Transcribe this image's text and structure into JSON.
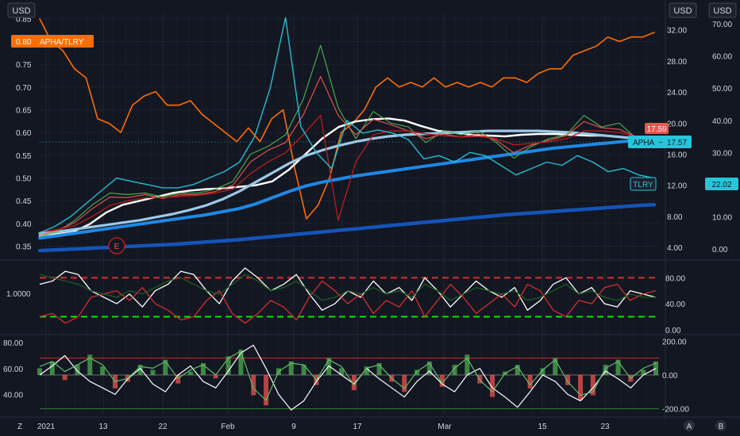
{
  "currency_labels": {
    "left": "USD",
    "mid": "USD",
    "right": "USD"
  },
  "symbol_tags": {
    "ratio": {
      "value": "0.80",
      "name": "APHA/TLRY",
      "color": "#ff6d00"
    },
    "apha_price": {
      "value": "17.59",
      "color": "#ef5350"
    },
    "apha_name": {
      "name": "APHA",
      "dash": "−",
      "value": "17.57",
      "color": "#26c6da"
    },
    "tlry_name": {
      "name": "TLRY",
      "color": "#26c6da"
    },
    "tlry_price": {
      "value": "22.02",
      "color": "#26c6da"
    },
    "earnings_marker": "E"
  },
  "scale_buttons": {
    "left": "Z",
    "a": "A",
    "b": "B"
  },
  "chart_data": [
    {
      "type": "line",
      "panel": "main",
      "x_ticks": [
        "2021",
        "13",
        "22",
        "Feb",
        "9",
        "17",
        "Mar",
        "15",
        "23"
      ],
      "left_axis": {
        "ticks": [
          "0.35",
          "0.40",
          "0.45",
          "0.50",
          "0.55",
          "0.60",
          "0.65",
          "0.70",
          "0.75",
          "0.80",
          "0.85"
        ],
        "range": [
          0.33,
          0.86
        ]
      },
      "mid_axis": {
        "ticks": [
          "4.00",
          "8.00",
          "12.00",
          "16.00",
          "20.00",
          "24.00",
          "28.00",
          "32.00"
        ],
        "range": [
          3,
          34
        ]
      },
      "right_axis": {
        "ticks": [
          "0.00",
          "10.00",
          "20.00",
          "30.00",
          "40.00",
          "50.00",
          "60.00",
          "70.00"
        ],
        "range": [
          -2,
          73
        ]
      },
      "series": [
        {
          "axis": "left",
          "color": "#ff6d00",
          "values": [
            0.85,
            0.8,
            0.78,
            0.74,
            0.72,
            0.63,
            0.62,
            0.6,
            0.66,
            0.68,
            0.69,
            0.66,
            0.66,
            0.67,
            0.64,
            0.62,
            0.6,
            0.58,
            0.61,
            0.58,
            0.63,
            0.65,
            0.52,
            0.41,
            0.44,
            0.5,
            0.6,
            0.62,
            0.65,
            0.7,
            0.72,
            0.7,
            0.71,
            0.7,
            0.72,
            0.7,
            0.71,
            0.7,
            0.71,
            0.7,
            0.72,
            0.72,
            0.71,
            0.73,
            0.74,
            0.74,
            0.77,
            0.78,
            0.79,
            0.81,
            0.8,
            0.81,
            0.81,
            0.82
          ]
        },
        {
          "axis": "mid",
          "color": "#ffffff",
          "values": [
            5.5,
            5.7,
            6.0,
            7.0,
            8.5,
            9.5,
            10.0,
            10.5,
            11.0,
            11.3,
            11.5,
            11.6,
            11.8,
            12.0,
            12.5,
            14.0,
            16.0,
            18.0,
            19.5,
            20.2,
            20.5,
            20.6,
            20.3,
            19.6,
            19.0,
            18.8,
            18.5,
            18.4,
            18.3,
            18.5,
            18.6,
            18.6,
            18.5,
            18.4,
            18.4,
            18.2,
            18.0,
            17.8
          ]
        },
        {
          "axis": "mid",
          "color": "#9ec9e8",
          "values": [
            5.8,
            6.0,
            6.3,
            6.6,
            6.9,
            7.2,
            7.5,
            7.9,
            8.3,
            8.8,
            9.4,
            10.2,
            11.2,
            12.4,
            13.6,
            14.8,
            15.8,
            16.5,
            17.1,
            17.6,
            18.0,
            18.3,
            18.5,
            18.6,
            18.7,
            18.8,
            18.9,
            19.0,
            19.0,
            19.0,
            19.0,
            18.9,
            18.8,
            18.6,
            18.4,
            18.2,
            18.0,
            17.7
          ]
        },
        {
          "axis": "mid",
          "color": "#1e88e5",
          "values": [
            5.2,
            5.5,
            5.8,
            6.1,
            6.4,
            6.7,
            7.0,
            7.3,
            7.6,
            7.9,
            8.2,
            8.6,
            9.0,
            9.6,
            10.4,
            11.2,
            11.9,
            12.4,
            12.8,
            13.2,
            13.5,
            13.8,
            14.1,
            14.4,
            14.7,
            15.0,
            15.3,
            15.6,
            15.9,
            16.2,
            16.5,
            16.8,
            17.0,
            17.2,
            17.4,
            17.6,
            17.8,
            18.0
          ]
        },
        {
          "axis": "mid",
          "color": "#1554b8",
          "values": [
            3.6,
            3.7,
            3.8,
            3.9,
            4.0,
            4.1,
            4.2,
            4.3,
            4.4,
            4.55,
            4.7,
            4.85,
            5.0,
            5.2,
            5.4,
            5.6,
            5.8,
            6.0,
            6.2,
            6.4,
            6.6,
            6.8,
            7.0,
            7.2,
            7.4,
            7.6,
            7.8,
            8.0,
            8.2,
            8.35,
            8.5,
            8.65,
            8.8,
            8.95,
            9.1,
            9.25,
            9.4,
            9.5
          ]
        },
        {
          "axis": "mid",
          "color": "#4caf50",
          "values": [
            5.4,
            6.0,
            7.5,
            9.5,
            11.0,
            10.8,
            11.0,
            10.5,
            11.0,
            11.0,
            11.5,
            12.5,
            16.0,
            17.0,
            18.5,
            23.0,
            30.0,
            22.0,
            18.0,
            21.5,
            20.0,
            19.5,
            17.5,
            19.0,
            18.5,
            19.0,
            17.5,
            15.5,
            17.0,
            18.0,
            18.5,
            21.0,
            19.5,
            20.0,
            18.0,
            17.6
          ]
        },
        {
          "axis": "mid",
          "color": "#ef5350",
          "values": [
            5.6,
            6.2,
            7.2,
            9.0,
            10.5,
            10.4,
            10.8,
            10.3,
            10.8,
            10.8,
            11.2,
            12.0,
            15.0,
            16.5,
            17.5,
            21.0,
            26.0,
            21.0,
            18.5,
            20.5,
            19.8,
            19.0,
            18.0,
            18.6,
            18.2,
            18.6,
            17.8,
            16.2,
            17.2,
            17.8,
            18.4,
            20.2,
            19.4,
            19.2,
            18.2,
            17.6
          ]
        },
        {
          "axis": "mid",
          "color": "#b71c1c",
          "values": [
            6.0,
            6.3,
            6.8,
            8.0,
            9.4,
            10.0,
            10.4,
            10.4,
            10.6,
            10.7,
            11.0,
            11.5,
            13.5,
            15.0,
            16.2,
            18.5,
            21.0,
            7.5,
            15.0,
            18.5,
            19.0,
            19.0,
            18.6,
            18.4,
            18.2,
            18.3,
            18.0,
            17.2,
            17.4,
            17.6,
            18.0,
            19.0,
            19.0,
            18.8,
            18.2,
            17.7
          ]
        },
        {
          "axis": "right",
          "color": "#26c6da",
          "values": [
            5,
            7,
            10,
            14,
            18,
            22,
            21,
            20,
            19,
            19,
            20,
            22,
            24,
            27,
            35,
            50,
            72,
            38,
            30,
            25,
            40,
            36,
            37,
            36,
            34,
            28,
            29,
            27,
            30,
            29,
            26,
            23,
            25,
            27,
            26,
            29,
            27,
            24,
            25,
            23,
            22
          ]
        }
      ]
    },
    {
      "type": "line",
      "panel": "oscillator",
      "y_ticks": [
        "0.00",
        "40.00",
        "80.00"
      ],
      "left_label": "1.0000",
      "range": [
        -5,
        100
      ],
      "levels": [
        {
          "value": 80,
          "color": "#d32f2f"
        },
        {
          "value": 20,
          "color": "#00e600"
        }
      ],
      "series": [
        {
          "color": "#ffffff",
          "values": [
            70,
            75,
            90,
            85,
            60,
            50,
            40,
            55,
            35,
            60,
            70,
            90,
            85,
            60,
            40,
            75,
            95,
            80,
            60,
            70,
            85,
            55,
            30,
            40,
            60,
            50,
            75,
            55,
            65,
            45,
            80,
            60,
            35,
            55,
            75,
            60,
            50,
            65,
            30,
            45,
            70,
            80,
            55,
            65,
            40,
            35,
            60,
            55,
            50
          ]
        },
        {
          "color": "#d32f2f",
          "values": [
            20,
            25,
            10,
            20,
            50,
            55,
            60,
            45,
            65,
            40,
            30,
            15,
            20,
            45,
            60,
            25,
            10,
            25,
            45,
            35,
            15,
            50,
            75,
            60,
            40,
            55,
            25,
            45,
            35,
            60,
            20,
            45,
            70,
            50,
            25,
            40,
            55,
            35,
            70,
            60,
            30,
            20,
            45,
            40,
            65,
            70,
            45,
            55,
            60
          ]
        },
        {
          "color": "#1b5e20",
          "values": [
            85,
            80,
            75,
            70,
            60,
            55,
            50,
            60,
            55,
            65,
            75,
            80,
            70,
            60,
            55,
            70,
            85,
            75,
            60,
            65,
            75,
            60,
            45,
            50,
            60,
            55,
            65,
            55,
            60,
            50,
            70,
            60,
            45,
            55,
            65,
            60,
            55,
            60,
            45,
            50,
            60,
            70,
            55,
            60,
            50,
            45,
            55,
            50,
            50
          ]
        }
      ]
    },
    {
      "type": "bar",
      "panel": "momentum",
      "left_ticks": [
        "40.00",
        "60.00",
        "80.00"
      ],
      "left_range": [
        25,
        85
      ],
      "right_ticks": [
        "-200.00",
        "0.00",
        "200.00"
      ],
      "right_range": [
        -230,
        230
      ],
      "levels": [
        {
          "axis": "right",
          "value": 100,
          "color": "#d32f2f"
        },
        {
          "axis": "right",
          "value": 0,
          "color": "#6b6b6b"
        },
        {
          "axis": "right",
          "value": -200,
          "color": "#2e7d32"
        }
      ],
      "histogram": [
        40,
        80,
        -30,
        60,
        120,
        50,
        -80,
        -40,
        60,
        30,
        90,
        -50,
        20,
        70,
        -20,
        110,
        150,
        -120,
        -180,
        40,
        80,
        60,
        -60,
        100,
        40,
        -90,
        50,
        70,
        -40,
        -100,
        30,
        80,
        -70,
        60,
        120,
        -50,
        -130,
        20,
        60,
        -80,
        40,
        100,
        -60,
        -150,
        -120,
        60,
        90,
        -40,
        30,
        80
      ],
      "series": [
        {
          "axis": "left",
          "color": "#ffffff",
          "values": [
            55,
            62,
            70,
            58,
            50,
            45,
            40,
            52,
            60,
            48,
            42,
            55,
            62,
            50,
            45,
            58,
            72,
            78,
            60,
            40,
            28,
            35,
            50,
            62,
            55,
            48,
            60,
            52,
            45,
            38,
            50,
            58,
            48,
            42,
            55,
            60,
            45,
            38,
            30,
            42,
            55,
            50,
            40,
            35,
            45,
            58,
            52,
            45,
            55,
            60
          ]
        },
        {
          "axis": "right",
          "color": "#66bb6a",
          "values": [
            50,
            80,
            20,
            60,
            100,
            60,
            -40,
            -20,
            50,
            40,
            80,
            -20,
            30,
            60,
            0,
            100,
            140,
            -80,
            -150,
            20,
            70,
            60,
            -30,
            90,
            50,
            -60,
            40,
            60,
            -20,
            -80,
            20,
            70,
            -50,
            40,
            100,
            -30,
            -100,
            10,
            50,
            -60,
            30,
            90,
            -40,
            -120,
            -100,
            40,
            80,
            -20,
            40,
            70
          ]
        }
      ]
    }
  ]
}
